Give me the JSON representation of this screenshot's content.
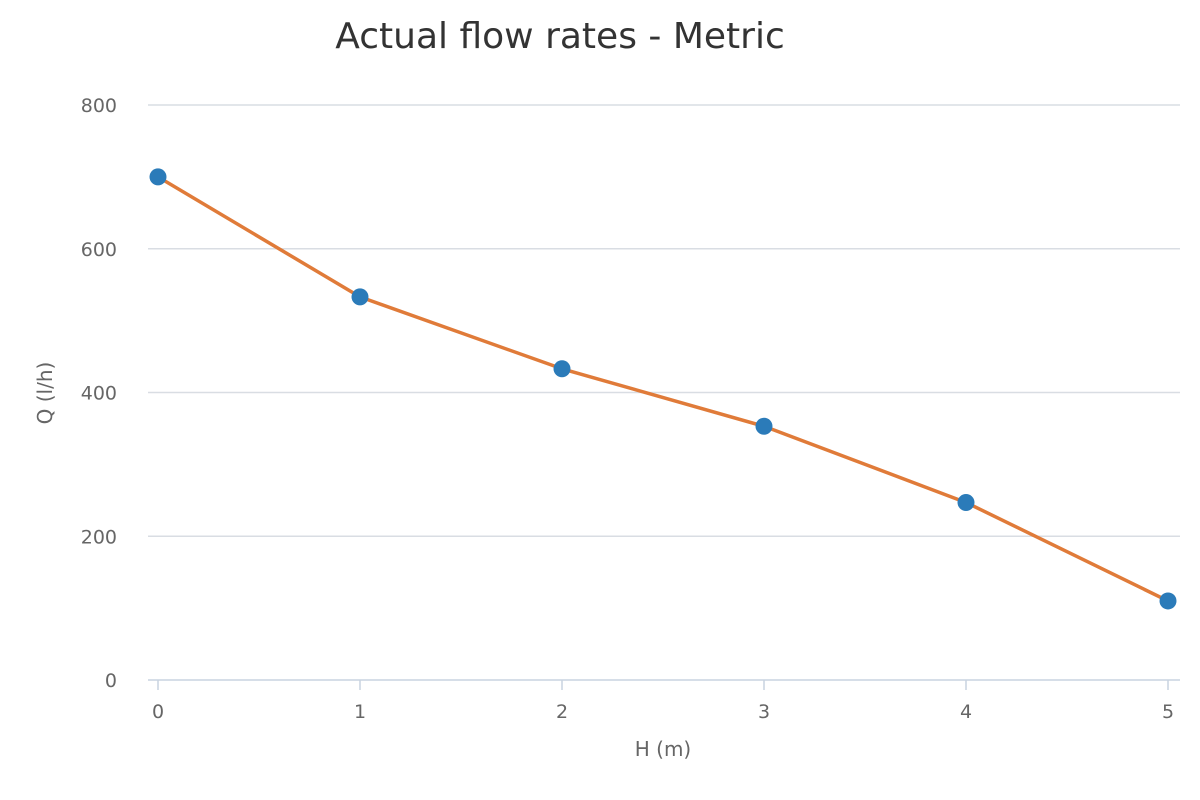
{
  "chart_data": {
    "type": "line",
    "title": "Actual flow rates - Metric",
    "xlabel": "H (m)",
    "ylabel": "Q (l/h)",
    "x": [
      0,
      1,
      2,
      3,
      4,
      5
    ],
    "x_ticks": [
      "0",
      "1",
      "2",
      "3",
      "4",
      "5"
    ],
    "y_ticks": [
      "0",
      "200",
      "400",
      "600",
      "800"
    ],
    "xlim": [
      0,
      5
    ],
    "ylim": [
      0,
      800
    ],
    "grid": true,
    "series": [
      {
        "values": [
          700,
          533,
          433,
          353,
          247,
          110
        ],
        "line_color": "#e07b39",
        "marker_color": "#2b7bb9"
      }
    ],
    "colors": {
      "grid": "#d9dde3",
      "axis": "#c9d3e0",
      "text": "#666666",
      "title": "#333333"
    }
  }
}
